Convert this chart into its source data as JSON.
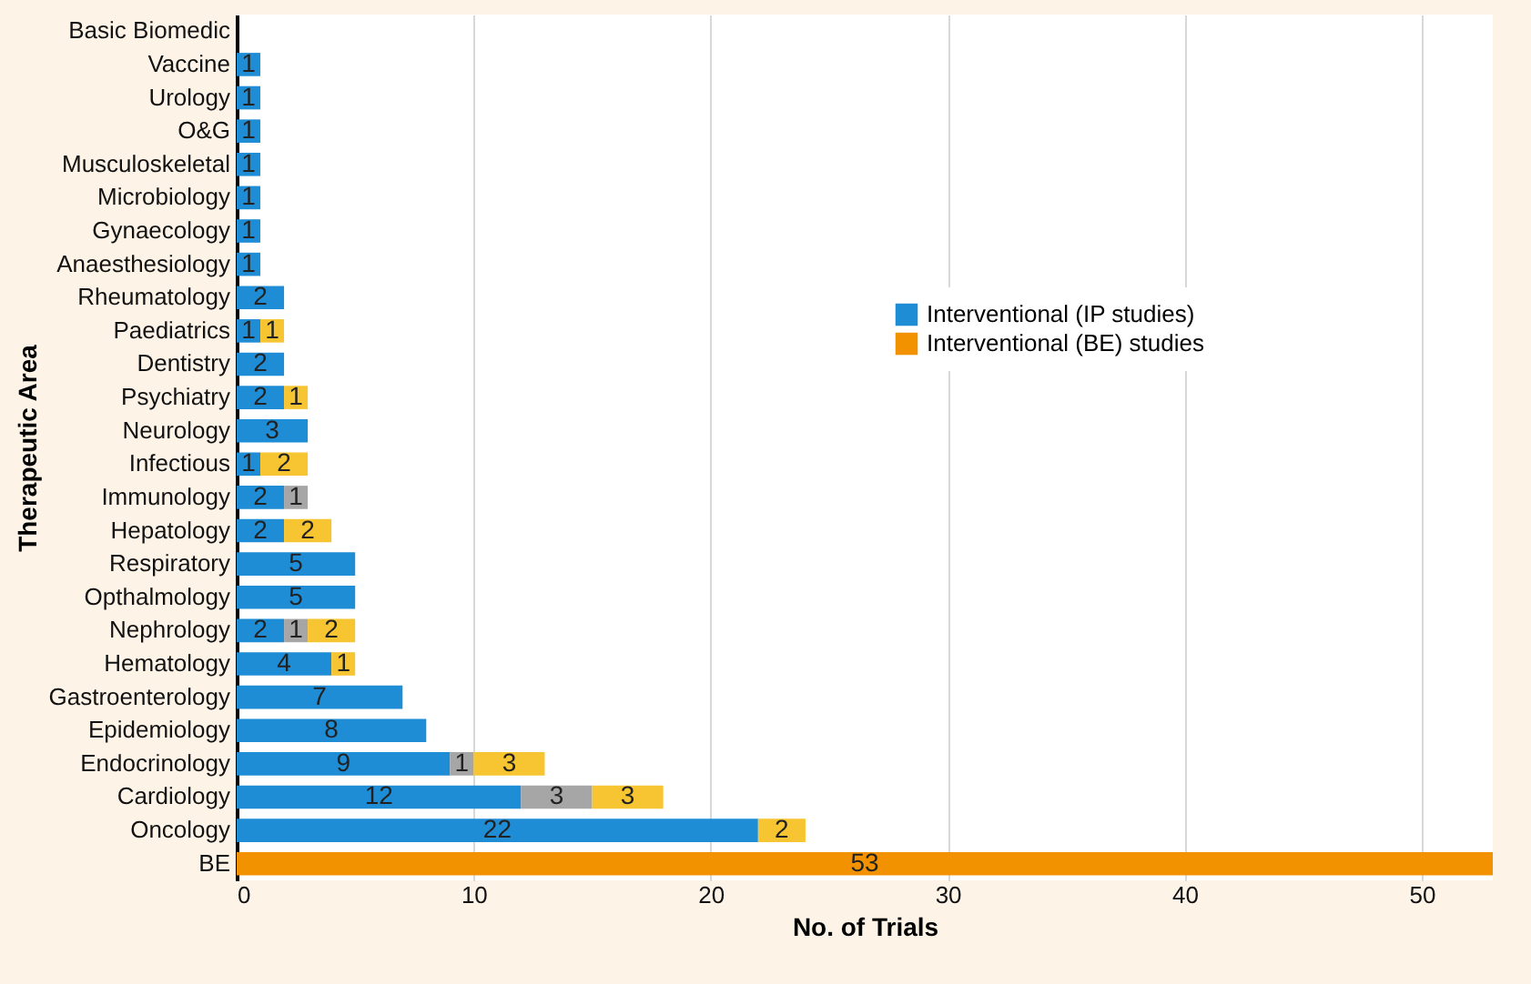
{
  "chart_data": {
    "type": "bar",
    "orientation": "horizontal",
    "stacked": true,
    "xlabel": "No. of Trials",
    "ylabel": "Therapeutic Area",
    "categories": [
      "Basic Biomedic",
      "Vaccine",
      "Urology",
      "O&G",
      "Musculoskeletal",
      "Microbiology",
      "Gynaecology",
      "Anaesthesiology",
      "Rheumatology",
      "Paediatrics",
      "Dentistry",
      "Psychiatry",
      "Neurology",
      "Infectious",
      "Immunology",
      "Hepatology",
      "Respiratory",
      "Opthalmology",
      "Nephrology",
      "Hematology",
      "Gastroenterology",
      "Epidemiology",
      "Endocrinology",
      "Cardiology",
      "Oncology",
      "BE"
    ],
    "series": [
      {
        "name": "Interventional (IP studies)",
        "color": "#1f8dd6",
        "values": [
          null,
          1,
          1,
          1,
          1,
          1,
          1,
          1,
          2,
          1,
          2,
          2,
          3,
          1,
          2,
          2,
          5,
          5,
          2,
          4,
          7,
          8,
          9,
          12,
          22,
          null
        ]
      },
      {
        "color": "#a6a6a6",
        "values": [
          null,
          null,
          null,
          null,
          null,
          null,
          null,
          null,
          null,
          null,
          null,
          null,
          null,
          null,
          1,
          null,
          null,
          null,
          1,
          null,
          null,
          null,
          1,
          3,
          null,
          null
        ]
      },
      {
        "color": "#f7c531",
        "values": [
          null,
          null,
          null,
          null,
          null,
          null,
          null,
          null,
          null,
          1,
          null,
          1,
          null,
          2,
          null,
          2,
          null,
          null,
          2,
          1,
          null,
          null,
          3,
          3,
          2,
          null
        ]
      },
      {
        "name": "Interventional (BE) studies",
        "color": "#f39200",
        "values": [
          null,
          null,
          null,
          null,
          null,
          null,
          null,
          null,
          null,
          null,
          null,
          null,
          null,
          null,
          null,
          null,
          null,
          null,
          null,
          null,
          null,
          null,
          null,
          null,
          null,
          53
        ]
      }
    ],
    "xlim": [
      0,
      53
    ],
    "xticks": [
      0,
      10,
      20,
      30,
      40,
      50
    ],
    "grid": "x",
    "legend": "top right",
    "data_labels": true
  }
}
